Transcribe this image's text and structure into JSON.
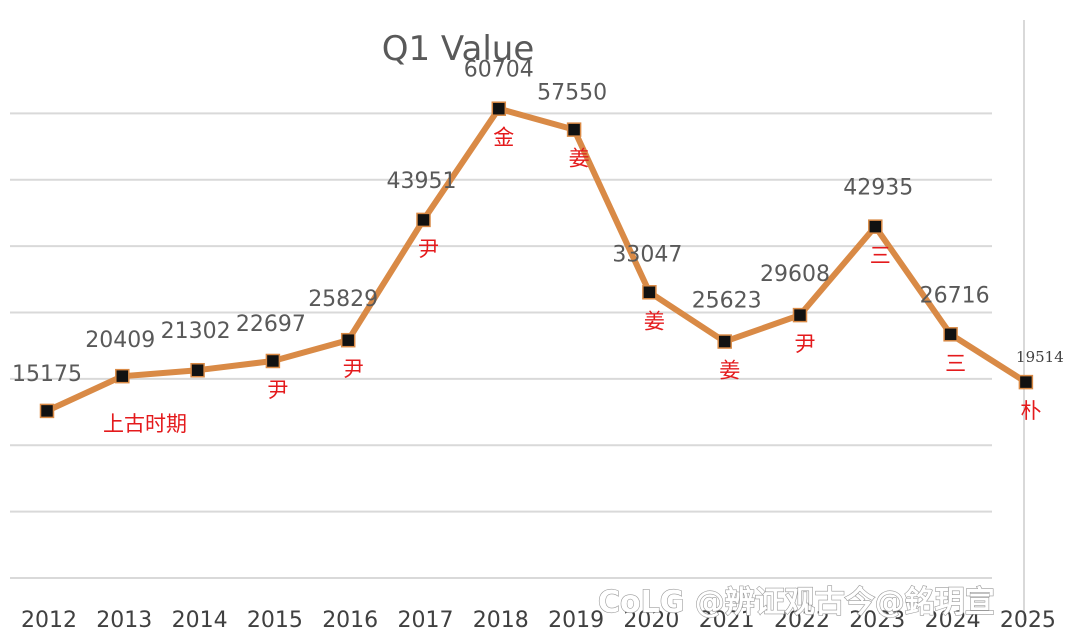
{
  "chart_data": {
    "type": "line",
    "title": "Q1 Value",
    "categories": [
      "2012",
      "2013",
      "2014",
      "2015",
      "2016",
      "2017",
      "2018",
      "2019",
      "2020",
      "2021",
      "2022",
      "2023",
      "2024",
      "2025"
    ],
    "values": [
      15175,
      20409,
      21302,
      22697,
      25829,
      43951,
      60704,
      57550,
      33047,
      25623,
      29608,
      42935,
      26716,
      19514
    ],
    "data_labels": [
      "15175",
      "20409",
      "21302",
      "22697",
      "25829",
      "43951",
      "60704",
      "57550",
      "33047",
      "25623",
      "29608",
      "42935",
      "26716",
      "19514"
    ],
    "annotations": [
      "上古时期",
      "",
      "",
      "尹",
      "尹",
      "尹",
      "金",
      "姜",
      "姜",
      "姜",
      "尹",
      "三",
      "三",
      "朴"
    ],
    "ylim": [
      -10000,
      70000
    ],
    "grid": true,
    "legend": "none",
    "colors": {
      "line": "#d98a46",
      "marker": "#111111",
      "grid": "#d9d9d9",
      "annotation": "#e41a1c"
    }
  },
  "watermark": "CoLG @辨证观古今@銘玥宣"
}
